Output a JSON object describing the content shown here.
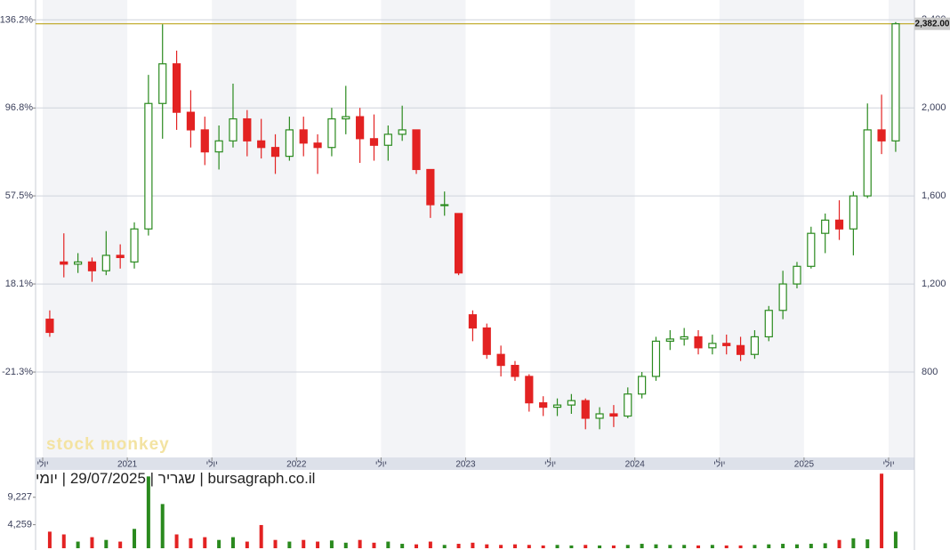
{
  "header": [
    "יומי",
    "29/07/2025",
    "שגריר",
    "bursagraph.co.il"
  ],
  "chart_data": [
    {
      "type": "candlestick",
      "watermark": "stock monkey",
      "categories": [
        "יולי",
        null,
        null,
        null,
        null,
        null,
        "2021",
        null,
        null,
        null,
        null,
        null,
        "יולי",
        null,
        null,
        null,
        null,
        null,
        "2022",
        null,
        null,
        null,
        null,
        null,
        "יולי",
        null,
        null,
        null,
        null,
        null,
        "2023",
        null,
        null,
        null,
        null,
        null,
        "יולי",
        null,
        null,
        null,
        null,
        null,
        "2024",
        null,
        null,
        null,
        null,
        null,
        "יולי",
        null,
        null,
        null,
        null,
        null,
        "2025",
        null,
        null,
        null,
        null,
        null,
        "יולי"
      ],
      "open": [
        1040,
        1300,
        1290,
        1300,
        1260,
        1330,
        1300,
        1450,
        2020,
        2200,
        1980,
        1900,
        1800,
        1850,
        1950,
        1850,
        1820,
        1780,
        1900,
        1840,
        1820,
        1950,
        1960,
        1860,
        1830,
        1880,
        1900,
        1720,
        1560,
        1520,
        1060,
        1000,
        880,
        830,
        780,
        660,
        640,
        650,
        670,
        590,
        610,
        600,
        700,
        780,
        940,
        950,
        960,
        910,
        930,
        920,
        880,
        960,
        1080,
        1200,
        1280,
        1430,
        1490,
        1450,
        1600,
        1900,
        1850
      ],
      "high": [
        1080,
        1430,
        1340,
        1320,
        1440,
        1380,
        1480,
        2150,
        2380,
        2260,
        2080,
        1960,
        1920,
        2110,
        1990,
        1950,
        1880,
        1960,
        1960,
        1880,
        2000,
        2100,
        2000,
        1970,
        1920,
        2010,
        1900,
        1720,
        1620,
        1520,
        1080,
        1020,
        920,
        850,
        790,
        690,
        680,
        700,
        680,
        640,
        650,
        730,
        800,
        960,
        990,
        1000,
        990,
        970,
        970,
        960,
        990,
        1100,
        1260,
        1300,
        1460,
        1520,
        1580,
        1620,
        2020,
        2060,
        2390
      ],
      "low": [
        960,
        1230,
        1250,
        1210,
        1240,
        1270,
        1270,
        1420,
        1860,
        1900,
        1820,
        1740,
        1720,
        1820,
        1780,
        1770,
        1700,
        1760,
        1780,
        1700,
        1780,
        1880,
        1750,
        1760,
        1760,
        1850,
        1700,
        1500,
        1510,
        1240,
        940,
        860,
        780,
        760,
        620,
        600,
        600,
        610,
        540,
        540,
        550,
        590,
        680,
        760,
        900,
        920,
        880,
        880,
        880,
        850,
        860,
        940,
        1040,
        1180,
        1270,
        1340,
        1400,
        1330,
        1590,
        1790,
        1800
      ],
      "close": [
        980,
        1290,
        1300,
        1260,
        1330,
        1320,
        1450,
        2020,
        2200,
        1980,
        1900,
        1800,
        1850,
        1950,
        1850,
        1820,
        1780,
        1900,
        1840,
        1820,
        1950,
        1960,
        1860,
        1830,
        1880,
        1900,
        1720,
        1560,
        1560,
        1250,
        1000,
        880,
        830,
        780,
        660,
        640,
        650,
        670,
        590,
        610,
        600,
        700,
        780,
        940,
        950,
        960,
        910,
        930,
        920,
        880,
        960,
        1080,
        1200,
        1280,
        1430,
        1490,
        1450,
        1600,
        1900,
        1850,
        2382
      ],
      "up_color": "#2a8a1e",
      "down_color": "#e32222",
      "ylim": [
        420,
        2490
      ],
      "yticks": [
        {
          "value": 800,
          "label": "800"
        },
        {
          "value": 1200,
          "label": "1,200"
        },
        {
          "value": 1600,
          "label": "1,600"
        },
        {
          "value": 2000,
          "label": "2,000"
        },
        {
          "value": 2400,
          "label": "2,400"
        }
      ],
      "y2lim": [
        -58.7,
        145.1
      ],
      "y2ticks": [
        {
          "value": -21.3,
          "label": "-21.3%"
        },
        {
          "value": 18.1,
          "label": "18.1%"
        },
        {
          "value": 57.5,
          "label": "57.5%"
        },
        {
          "value": 96.8,
          "label": "96.8%"
        },
        {
          "value": 136.2,
          "label": "136.2%"
        }
      ],
      "last_price": {
        "value": 2382,
        "label": "2,382.00"
      },
      "last_price_color": "#b59a00",
      "grid": true
    },
    {
      "type": "bar",
      "values": [
        3000,
        2500,
        1200,
        2000,
        1500,
        1200,
        3500,
        13000,
        8000,
        2500,
        1800,
        2000,
        1500,
        2000,
        1200,
        4200,
        1500,
        1200,
        1500,
        1200,
        1400,
        1000,
        1500,
        1000,
        1200,
        800,
        700,
        1200,
        600,
        800,
        1000,
        700,
        600,
        700,
        600,
        500,
        600,
        500,
        600,
        500,
        500,
        600,
        800,
        700,
        600,
        600,
        500,
        600,
        500,
        500,
        600,
        700,
        800,
        700,
        800,
        900,
        1500,
        1800,
        1600,
        13500,
        3000
      ],
      "ylim": [
        0,
        13860
      ],
      "yticks": [
        {
          "value": 4259,
          "label": "4,259"
        },
        {
          "value": 9227,
          "label": "9,227"
        }
      ]
    }
  ]
}
